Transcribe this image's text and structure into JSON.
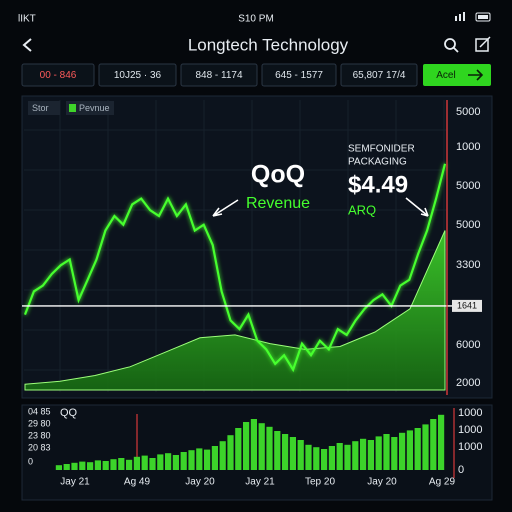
{
  "status_bar": {
    "carrier": "lIKT",
    "time": "S10 PM"
  },
  "header": {
    "title": "Longtech Technology"
  },
  "tabs": [
    "00 - 846",
    "10J25 · 36",
    "848 - 1174",
    "645 - 1577",
    "65,807 17/4"
  ],
  "action_button": "Acel",
  "main_chart": {
    "legend": [
      "Stor",
      "Pevnue"
    ],
    "annotations": {
      "qoq": "QoQ",
      "revenue": "Revenue",
      "company": [
        "SEMFONIDER",
        "PACKAGING"
      ],
      "price": "$4.49",
      "arq": "ARQ"
    },
    "axis_labels": [
      5000,
      1000,
      5000,
      5000,
      3300,
      6000,
      2000
    ],
    "reference_line": {
      "value": 29,
      "label": "1641"
    },
    "ylim": [
      0,
      100
    ],
    "line_values": [
      26,
      34,
      36,
      40,
      43,
      45,
      31,
      38,
      45,
      55,
      60,
      57,
      64,
      66,
      62,
      60,
      66,
      60,
      64,
      55,
      57,
      50,
      34,
      24,
      21,
      26,
      17,
      14,
      9,
      12,
      7,
      16,
      12,
      17,
      14,
      21,
      19,
      24,
      28,
      31,
      33,
      29,
      36,
      38,
      47,
      55,
      66,
      78
    ],
    "area_values": [
      2,
      3,
      5,
      8,
      13,
      18,
      19,
      16,
      14,
      15,
      20,
      28,
      55
    ]
  },
  "volume_chart": {
    "title": "QQ",
    "left_labels": [
      "04 85",
      "29 80",
      "23 80",
      "20 83",
      "0"
    ],
    "right_labels": [
      1000,
      1000,
      1000,
      0
    ],
    "x_labels": [
      "Jay 21",
      "Ag 49",
      "Jay 20",
      "Jay 21",
      "Tep 20",
      "Jay 20",
      "Ag 29"
    ],
    "ylim": [
      0,
      100
    ],
    "values": [
      8,
      10,
      12,
      14,
      13,
      16,
      15,
      18,
      20,
      17,
      22,
      24,
      20,
      26,
      28,
      25,
      30,
      33,
      36,
      34,
      40,
      48,
      58,
      70,
      80,
      85,
      78,
      72,
      65,
      60,
      55,
      50,
      42,
      38,
      35,
      40,
      45,
      42,
      48,
      52,
      50,
      56,
      60,
      55,
      62,
      66,
      70,
      76,
      85,
      92
    ]
  }
}
